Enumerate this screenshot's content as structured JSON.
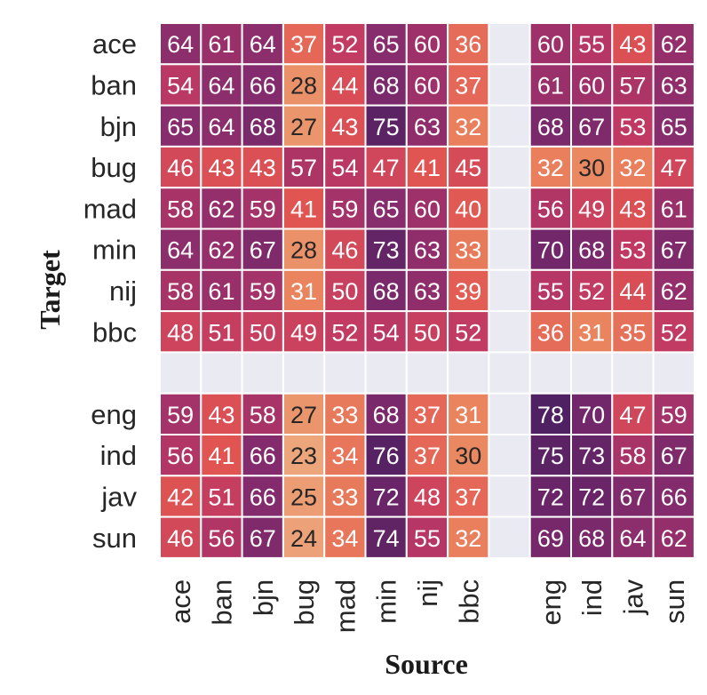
{
  "chart_data": {
    "type": "heatmap",
    "xlabel": "Source",
    "ylabel": "Target",
    "columns": [
      "ace",
      "ban",
      "bjn",
      "bug",
      "mad",
      "min",
      "nij",
      "bbc",
      "",
      "eng",
      "ind",
      "jav",
      "sun"
    ],
    "rows": [
      "ace",
      "ban",
      "bjn",
      "bug",
      "mad",
      "min",
      "nij",
      "bbc",
      "",
      "eng",
      "ind",
      "jav",
      "sun"
    ],
    "values": [
      [
        64,
        61,
        64,
        37,
        52,
        65,
        60,
        36,
        null,
        60,
        55,
        43,
        62
      ],
      [
        54,
        64,
        66,
        28,
        44,
        68,
        60,
        37,
        null,
        61,
        60,
        57,
        63
      ],
      [
        65,
        64,
        68,
        27,
        43,
        75,
        63,
        32,
        null,
        68,
        67,
        53,
        65
      ],
      [
        46,
        43,
        43,
        57,
        54,
        47,
        41,
        45,
        null,
        32,
        30,
        32,
        47
      ],
      [
        58,
        62,
        59,
        41,
        59,
        65,
        60,
        40,
        null,
        56,
        49,
        43,
        61
      ],
      [
        64,
        62,
        67,
        28,
        46,
        73,
        63,
        33,
        null,
        70,
        68,
        53,
        67
      ],
      [
        58,
        61,
        59,
        31,
        50,
        68,
        63,
        39,
        null,
        55,
        52,
        44,
        62
      ],
      [
        48,
        51,
        50,
        49,
        52,
        54,
        50,
        52,
        null,
        36,
        31,
        35,
        52
      ],
      [
        null,
        null,
        null,
        null,
        null,
        null,
        null,
        null,
        null,
        null,
        null,
        null,
        null
      ],
      [
        59,
        43,
        58,
        27,
        33,
        68,
        37,
        31,
        null,
        78,
        70,
        47,
        59
      ],
      [
        56,
        41,
        66,
        23,
        34,
        76,
        37,
        30,
        null,
        75,
        73,
        58,
        67
      ],
      [
        42,
        51,
        66,
        25,
        33,
        72,
        48,
        37,
        null,
        72,
        72,
        67,
        66
      ],
      [
        46,
        56,
        67,
        24,
        34,
        74,
        55,
        32,
        null,
        69,
        68,
        64,
        62
      ]
    ],
    "color_range": [
      20,
      80
    ],
    "colormap": "flare",
    "empty_color": "#e9eaf2",
    "text_color_light": "#ffffff",
    "text_color_dark": "#262626"
  }
}
